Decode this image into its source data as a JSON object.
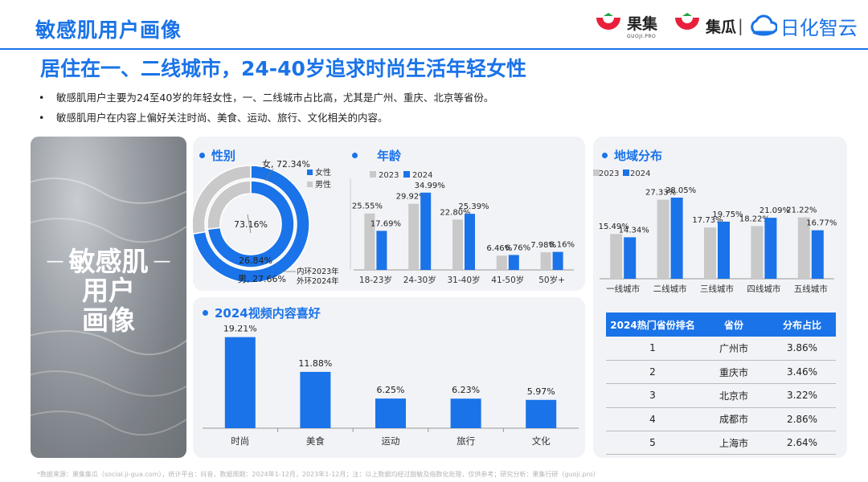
{
  "page": {
    "title": "敏感肌用户画像",
    "headline": "居住在一、二线城市，24-40岁追求时尚生活年轻女性",
    "bullets": [
      "敏感肌用户主要为24至40岁的年轻女性，一、二线城市占比高，尤其是广州、重庆、北京等省份。",
      "敏感肌用户在内容上偏好关注时尚、美食、运动、旅行、文化相关的内容。"
    ],
    "bullet_marker": "•",
    "footnote": "*数据来源：果集集瓜（social.ji-gua.com），统计平台：抖音，数据周期：2024年1-12月，2023年1-12月；注：以上数据均经过脱敏及指数化处理，仅供参考；研究分析：果集行研（guoji.pro）"
  },
  "logos": {
    "guoji": "果集",
    "guoji_sub": "GUOJI.PRO",
    "jigua": "集瓜",
    "separator": "|",
    "rihua": "日化智云"
  },
  "hero": {
    "lines": [
      "敏感肌",
      "用户",
      "画像"
    ],
    "dash": "—"
  },
  "colors": {
    "accent": "#1a73e8",
    "gray_bar": "#c9c9c9",
    "panel_bg": "#f2f3f6"
  },
  "sections": {
    "gender": "性别",
    "age": "年龄",
    "region": "地域分布",
    "video": "2024视频内容喜好"
  },
  "chart_data": [
    {
      "type": "pie",
      "name": "gender",
      "variant": "double-ring-donut",
      "legend": [
        "女性",
        "男性"
      ],
      "rings": [
        {
          "label": "外环2024年",
          "values": [
            {
              "name": "女",
              "value": 72.34
            },
            {
              "name": "男",
              "value": 27.66
            }
          ]
        },
        {
          "label": "内环2023年",
          "values": [
            {
              "name": "女",
              "value": 73.16
            },
            {
              "name": "男",
              "value": 26.84
            }
          ]
        }
      ],
      "labels": {
        "outer_female": "女, 72.34%",
        "outer_male": "男, 27.66%",
        "inner_female": "73.16%",
        "inner_male": "26.84%",
        "ring_note_inner": "内环2023年",
        "ring_note_outer": "外环2024年"
      }
    },
    {
      "type": "bar",
      "name": "age",
      "legend_position": "top-left",
      "categories": [
        "18-23岁",
        "24-30岁",
        "31-40岁",
        "41-50岁",
        "50岁+"
      ],
      "series": [
        {
          "name": "2023",
          "values": [
            25.55,
            29.92,
            22.8,
            6.46,
            7.98
          ],
          "labels": [
            "25.55%",
            "29.92%",
            "22.80%",
            "6.46%",
            "7.98%"
          ]
        },
        {
          "name": "2024",
          "values": [
            17.69,
            34.99,
            25.39,
            6.76,
            8.16
          ],
          "labels": [
            "17.69%",
            "34.99%",
            "25.39%",
            "6.76%",
            "8.16%"
          ]
        }
      ],
      "ylim": [
        0,
        40
      ]
    },
    {
      "type": "bar",
      "name": "region",
      "legend_position": "top-left",
      "categories": [
        "一线城市",
        "二线城市",
        "三线城市",
        "四线城市",
        "五线城市"
      ],
      "series": [
        {
          "name": "2023",
          "values": [
            15.49,
            27.33,
            17.73,
            18.22,
            21.22
          ],
          "labels": [
            "15.49%",
            "27.33%",
            "17.73%",
            "18.22%",
            "21.22%"
          ]
        },
        {
          "name": "2024",
          "values": [
            14.34,
            28.05,
            19.75,
            21.09,
            16.77
          ],
          "labels": [
            "14.34%",
            "28.05%",
            "19.75%",
            "21.09%",
            "16.77%"
          ]
        }
      ],
      "ylim": [
        0,
        30
      ]
    },
    {
      "type": "bar",
      "name": "video",
      "categories": [
        "时尚",
        "美食",
        "运动",
        "旅行",
        "文化"
      ],
      "values": [
        19.21,
        11.88,
        6.25,
        6.23,
        5.97
      ],
      "labels": [
        "19.21%",
        "11.88%",
        "6.25%",
        "6.23%",
        "5.97%"
      ],
      "ylim": [
        0,
        20
      ]
    },
    {
      "type": "table",
      "name": "province-ranking",
      "columns": [
        "2024热门省份排名",
        "省份",
        "分布占比"
      ],
      "rows": [
        [
          "1",
          "广州市",
          "3.86%"
        ],
        [
          "2",
          "重庆市",
          "3.46%"
        ],
        [
          "3",
          "北京市",
          "3.22%"
        ],
        [
          "4",
          "成都市",
          "2.86%"
        ],
        [
          "5",
          "上海市",
          "2.64%"
        ]
      ]
    }
  ]
}
